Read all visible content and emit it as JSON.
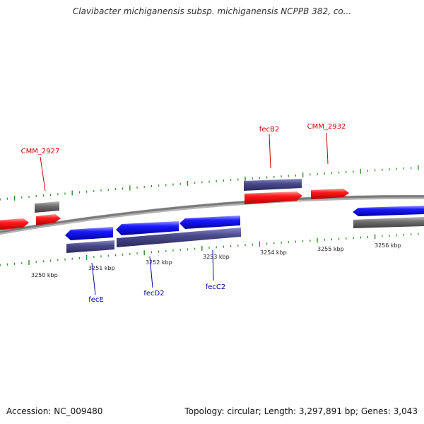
{
  "title": "Clavibacter michiganensis subsp. michiganensis NCPPB 382, co...",
  "footer": {
    "accession": "Accession: NC_009480",
    "stats": "Topology: circular; Length: 3,297,891 bp; Genes: 3,043"
  },
  "ticks": [
    "3250 kbp",
    "3251 kbp",
    "3252 kbp",
    "3253 kbp",
    "3254 kbp",
    "3255 kbp",
    "3256 kbp"
  ],
  "labels": {
    "forward": [
      "CMM_2927",
      "fecB2",
      "CMM_2932"
    ],
    "reverse": [
      "fecE",
      "fecD2",
      "fecC2"
    ]
  },
  "colors": {
    "forward_gene": "#ff0000",
    "reverse_gene": "#0000ee",
    "forward_label": "#cc0000",
    "reverse_label": "#0000aa",
    "slate_feature": "#4a4a8c",
    "gray_feature": "#6e6e6e",
    "backbone": "#8c8c8c",
    "tick": "#2e8b2e"
  }
}
